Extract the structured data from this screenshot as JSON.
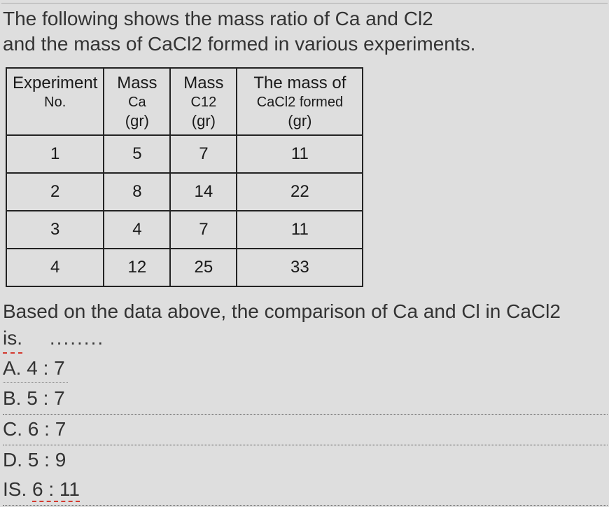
{
  "intro": {
    "line1": "The following shows the mass ratio of Ca and Cl2",
    "line2": "and the mass of CaCl2 formed in various experiments."
  },
  "table": {
    "headers": {
      "exp_top": "Experiment",
      "exp_sub": "No.",
      "ca_top": "Mass",
      "ca_sub": "Ca",
      "ca_unit": "(gr)",
      "cl_top": "Mass",
      "cl_sub": "C12",
      "cl_unit": "(gr)",
      "cacl_top": "The mass of",
      "cacl_sub": "CaCl2 formed",
      "cacl_unit": "(gr)"
    },
    "rows": [
      {
        "no": "1",
        "ca": "5",
        "cl": "7",
        "cacl": "11"
      },
      {
        "no": "2",
        "ca": "8",
        "cl": "14",
        "cacl": "22"
      },
      {
        "no": "3",
        "ca": "4",
        "cl": "7",
        "cacl": "11"
      },
      {
        "no": "4",
        "ca": "12",
        "cl": "25",
        "cacl": "33"
      }
    ],
    "col_widths": {
      "exp": 130,
      "ca": 95,
      "cl": 95,
      "cacl": 180
    },
    "border_color": "#232323",
    "background_color": "#dedede",
    "font_size_header": 24,
    "font_size_cell": 24
  },
  "question": {
    "line1": "Based on the data above, the comparison of Ca and Cl in CaCl2",
    "line2_prefix": "is.",
    "dots": "........"
  },
  "answers": {
    "A": "A. 4 : 7",
    "B": "B. 5 : 7",
    "C": "C. 6 : 7",
    "D": "D. 5 : 9",
    "IS_label": "IS.",
    "IS_value": "6 : 11"
  },
  "colors": {
    "page_bg": "#dedede",
    "text": "#2a2a2a",
    "red_dash": "#d33a2f",
    "dotted_rule": "#555555"
  },
  "typography": {
    "body_fontsize": 28,
    "font_family": "Arial"
  }
}
